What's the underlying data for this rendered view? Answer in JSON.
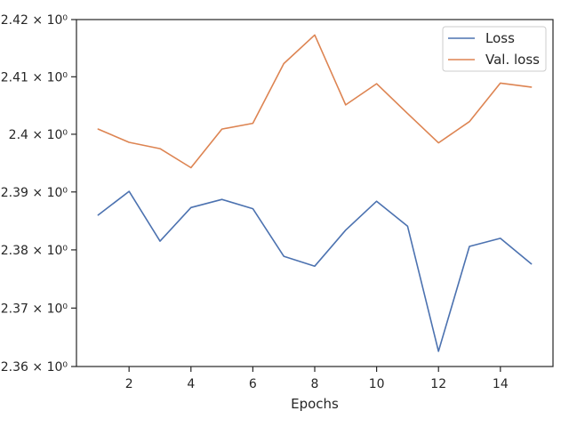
{
  "chart_data": {
    "type": "line",
    "title": "",
    "xlabel": "Epochs",
    "ylabel": "",
    "yscale": "log",
    "grid": false,
    "legend_position": "top-right",
    "xlim": [
      0.3,
      15.7
    ],
    "ylim": [
      2.36,
      2.42
    ],
    "x": [
      1,
      2,
      3,
      4,
      5,
      6,
      7,
      8,
      9,
      10,
      11,
      12,
      13,
      14,
      15
    ],
    "x_ticks": [
      2,
      4,
      6,
      8,
      10,
      12,
      14
    ],
    "x_tick_labels": [
      "2",
      "4",
      "6",
      "8",
      "10",
      "12",
      "14"
    ],
    "y_ticks": [
      2.36,
      2.37,
      2.38,
      2.39,
      2.4,
      2.41,
      2.42
    ],
    "y_tick_labels": [
      "2.36 × 10⁰",
      "2.37 × 10⁰",
      "2.38 × 10⁰",
      "2.39 × 10⁰",
      "2.4 × 10⁰",
      "2.41 × 10⁰",
      "2.42 × 10⁰"
    ],
    "series": [
      {
        "name": "Loss",
        "color": "#4c72b0",
        "values": [
          2.386,
          2.3901,
          2.3815,
          2.3873,
          2.3887,
          2.3871,
          2.3789,
          2.3772,
          2.3834,
          2.3884,
          2.3841,
          2.3626,
          2.3806,
          2.382,
          2.3776
        ]
      },
      {
        "name": "Val. loss",
        "color": "#dd8452",
        "values": [
          2.4009,
          2.3986,
          2.3975,
          2.3942,
          2.4009,
          2.4019,
          2.4123,
          2.4173,
          2.4051,
          2.4088,
          2.4036,
          2.3985,
          2.4022,
          2.4089,
          2.4082
        ]
      }
    ]
  }
}
